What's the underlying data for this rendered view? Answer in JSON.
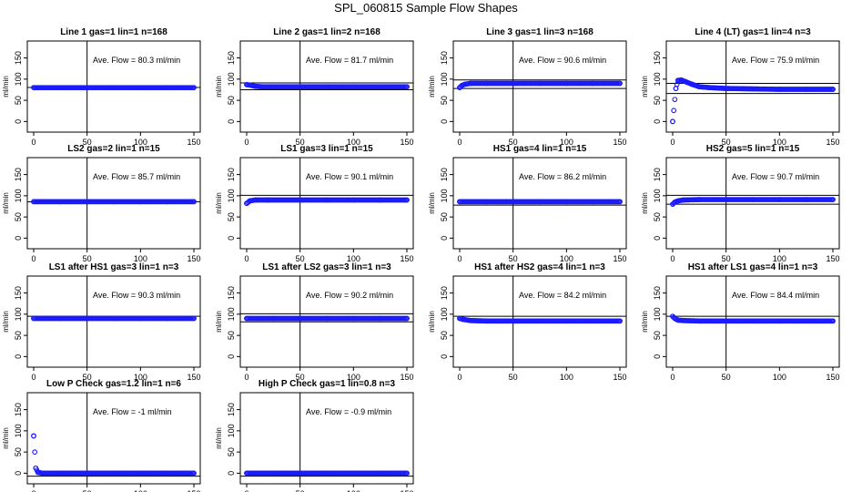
{
  "main_title": "SPL_060815  Sample Flow Shapes",
  "chart_data": [
    {
      "type": "scatter",
      "title": "Line 1 gas=1 lin=1 n=168",
      "ylabel": "ml/min",
      "xlim": [
        0,
        150
      ],
      "ylim": [
        -25,
        190
      ],
      "xticks": [
        0,
        50,
        100,
        150
      ],
      "yticks": [
        0,
        50,
        100,
        150
      ],
      "vline": 50,
      "hlines": [
        80.3
      ],
      "flow_label": "Ave. Flow =  80.3  ml/min",
      "series": [
        {
          "name": "",
          "x": [
            0,
            25,
            50,
            75,
            100,
            125,
            150
          ],
          "y": [
            80,
            80,
            80,
            80,
            80,
            80,
            80
          ]
        }
      ]
    },
    {
      "type": "scatter",
      "title": "Line 2 gas=1 lin=2 n=168",
      "ylabel": "ml/min",
      "xlim": [
        0,
        150
      ],
      "ylim": [
        -25,
        190
      ],
      "xticks": [
        0,
        50,
        100,
        150
      ],
      "yticks": [
        0,
        50,
        100,
        150
      ],
      "vline": 50,
      "hlines": [
        91,
        75
      ],
      "flow_label": "Ave. Flow =  81.7  ml/min",
      "series": [
        {
          "name": "",
          "x": [
            0,
            3,
            8,
            15,
            30,
            50,
            75,
            100,
            125,
            150
          ],
          "y": [
            87,
            86,
            83,
            82,
            82,
            82,
            82,
            82,
            82,
            82
          ]
        }
      ]
    },
    {
      "type": "scatter",
      "title": "Line 3 gas=1 lin=3 n=168",
      "ylabel": "ml/min",
      "xlim": [
        0,
        150
      ],
      "ylim": [
        -25,
        190
      ],
      "xticks": [
        0,
        50,
        100,
        150
      ],
      "yticks": [
        0,
        50,
        100,
        150
      ],
      "vline": 50,
      "hlines": [
        98,
        78
      ],
      "flow_label": "Ave. Flow =  90.6  ml/min",
      "series": [
        {
          "name": "",
          "x": [
            0,
            2,
            5,
            10,
            25,
            50,
            75,
            100,
            125,
            150
          ],
          "y": [
            80,
            85,
            88,
            90,
            90,
            90,
            90,
            90,
            90,
            90
          ]
        }
      ]
    },
    {
      "type": "scatter",
      "title": "Line 4 (LT) gas=1 lin=4 n=3",
      "ylabel": "ml/min",
      "xlim": [
        0,
        150
      ],
      "ylim": [
        -25,
        190
      ],
      "xticks": [
        0,
        50,
        100,
        150
      ],
      "yticks": [
        0,
        50,
        100,
        150
      ],
      "vline": 50,
      "hlines": [
        90,
        66
      ],
      "flow_label": "Ave. Flow =  75.9  ml/min",
      "series": [
        {
          "name": "",
          "x": [
            0,
            3,
            5,
            8,
            12,
            18,
            25,
            35,
            50,
            75,
            100,
            125,
            150
          ],
          "y": [
            0,
            78,
            97,
            98,
            94,
            88,
            82,
            80,
            78,
            77,
            76,
            76,
            76
          ]
        }
      ]
    },
    {
      "type": "scatter",
      "title": "LS2 gas=2 lin=1 n=15",
      "ylabel": "ml/min",
      "xlim": [
        0,
        150
      ],
      "ylim": [
        -25,
        190
      ],
      "xticks": [
        0,
        50,
        100,
        150
      ],
      "yticks": [
        0,
        50,
        100,
        150
      ],
      "vline": 50,
      "hlines": [
        85.7
      ],
      "flow_label": "Ave. Flow =  85.7  ml/min",
      "series": [
        {
          "name": "",
          "x": [
            0,
            25,
            50,
            75,
            100,
            125,
            150
          ],
          "y": [
            86,
            86,
            86,
            86,
            86,
            86,
            86
          ]
        }
      ]
    },
    {
      "type": "scatter",
      "title": "LS1 gas=3 lin=1 n=15",
      "ylabel": "ml/min",
      "xlim": [
        0,
        150
      ],
      "ylim": [
        -25,
        190
      ],
      "xticks": [
        0,
        50,
        100,
        150
      ],
      "yticks": [
        0,
        50,
        100,
        150
      ],
      "vline": 50,
      "hlines": [
        101
      ],
      "flow_label": "Ave. Flow =  90.1  ml/min",
      "series": [
        {
          "name": "",
          "x": [
            0,
            3,
            8,
            20,
            50,
            75,
            100,
            125,
            150
          ],
          "y": [
            82,
            88,
            90,
            90,
            90,
            90,
            90,
            90,
            90
          ]
        }
      ]
    },
    {
      "type": "scatter",
      "title": "HS1 gas=4 lin=1 n=15",
      "ylabel": "ml/min",
      "xlim": [
        0,
        150
      ],
      "ylim": [
        -25,
        190
      ],
      "xticks": [
        0,
        50,
        100,
        150
      ],
      "yticks": [
        0,
        50,
        100,
        150
      ],
      "vline": 50,
      "hlines": [
        78
      ],
      "flow_label": "Ave. Flow =  86.2  ml/min",
      "series": [
        {
          "name": "",
          "x": [
            0,
            25,
            50,
            75,
            100,
            125,
            150
          ],
          "y": [
            86,
            86,
            86,
            86,
            86,
            86,
            86
          ]
        }
      ]
    },
    {
      "type": "scatter",
      "title": "HS2 gas=5 lin=1 n=15",
      "ylabel": "ml/min",
      "xlim": [
        0,
        150
      ],
      "ylim": [
        -25,
        190
      ],
      "xticks": [
        0,
        50,
        100,
        150
      ],
      "yticks": [
        0,
        50,
        100,
        150
      ],
      "vline": 50,
      "hlines": [
        101,
        80
      ],
      "flow_label": "Ave. Flow =  90.7  ml/min",
      "series": [
        {
          "name": "",
          "x": [
            0,
            2,
            5,
            10,
            25,
            50,
            75,
            100,
            125,
            150
          ],
          "y": [
            80,
            85,
            88,
            90,
            91,
            91,
            91,
            91,
            91,
            91
          ]
        }
      ]
    },
    {
      "type": "scatter",
      "title": "LS1 after HS1 gas=3 lin=1 n=3",
      "ylabel": "ml/min",
      "xlim": [
        0,
        150
      ],
      "ylim": [
        -25,
        190
      ],
      "xticks": [
        0,
        50,
        100,
        150
      ],
      "yticks": [
        0,
        50,
        100,
        150
      ],
      "vline": 50,
      "hlines": [
        95
      ],
      "flow_label": "Ave. Flow =  90.3  ml/min",
      "series": [
        {
          "name": "",
          "x": [
            0,
            25,
            50,
            75,
            100,
            125,
            150
          ],
          "y": [
            90,
            90,
            90,
            90,
            90,
            90,
            90
          ]
        }
      ]
    },
    {
      "type": "scatter",
      "title": "LS1 after LS2 gas=3 lin=1 n=3",
      "ylabel": "ml/min",
      "xlim": [
        0,
        150
      ],
      "ylim": [
        -25,
        190
      ],
      "xticks": [
        0,
        50,
        100,
        150
      ],
      "yticks": [
        0,
        50,
        100,
        150
      ],
      "vline": 50,
      "hlines": [
        101,
        82
      ],
      "flow_label": "Ave. Flow =  90.2  ml/min",
      "series": [
        {
          "name": "",
          "x": [
            0,
            25,
            50,
            75,
            100,
            125,
            150
          ],
          "y": [
            90,
            90,
            90,
            90,
            90,
            90,
            90
          ]
        }
      ]
    },
    {
      "type": "scatter",
      "title": "HS1 after HS2 gas=4 lin=1 n=3",
      "ylabel": "ml/min",
      "xlim": [
        0,
        150
      ],
      "ylim": [
        -25,
        190
      ],
      "xticks": [
        0,
        50,
        100,
        150
      ],
      "yticks": [
        0,
        50,
        100,
        150
      ],
      "vline": 50,
      "hlines": [
        95
      ],
      "flow_label": "Ave. Flow =  84.2  ml/min",
      "series": [
        {
          "name": "",
          "x": [
            0,
            3,
            10,
            25,
            50,
            75,
            100,
            125,
            150
          ],
          "y": [
            90,
            88,
            85,
            84,
            84,
            84,
            84,
            84,
            84
          ]
        }
      ]
    },
    {
      "type": "scatter",
      "title": "HS1 after LS1 gas=4 lin=1 n=3",
      "ylabel": "ml/min",
      "xlim": [
        0,
        150
      ],
      "ylim": [
        -25,
        190
      ],
      "xticks": [
        0,
        50,
        100,
        150
      ],
      "yticks": [
        0,
        50,
        100,
        150
      ],
      "vline": 50,
      "hlines": [
        95
      ],
      "flow_label": "Ave. Flow =  84.4  ml/min",
      "series": [
        {
          "name": "",
          "x": [
            0,
            2,
            5,
            10,
            25,
            50,
            75,
            100,
            125,
            150
          ],
          "y": [
            95,
            90,
            86,
            85,
            84,
            84,
            84,
            84,
            84,
            84
          ]
        }
      ]
    },
    {
      "type": "scatter",
      "title": "Low P Check gas=1.2 lin=1 n=6",
      "ylabel": "ml/min",
      "xlim": [
        0,
        150
      ],
      "ylim": [
        -25,
        190
      ],
      "xticks": [
        0,
        50,
        100,
        150
      ],
      "yticks": [
        0,
        50,
        100,
        150
      ],
      "vline": 50,
      "hlines": [
        -7
      ],
      "flow_label": "Ave. Flow =  -1  ml/min",
      "series": [
        {
          "name": "",
          "x": [
            0,
            2,
            4,
            8,
            25,
            50,
            75,
            100,
            125,
            150
          ],
          "y": [
            88,
            12,
            2,
            0,
            0,
            0,
            0,
            0,
            0,
            0
          ]
        }
      ]
    },
    {
      "type": "scatter",
      "title": "High P Check gas=1 lin=0.8 n=3",
      "ylabel": "ml/min",
      "xlim": [
        0,
        150
      ],
      "ylim": [
        -25,
        190
      ],
      "xticks": [
        0,
        50,
        100,
        150
      ],
      "yticks": [
        0,
        50,
        100,
        150
      ],
      "vline": 50,
      "hlines": [
        -7
      ],
      "flow_label": "Ave. Flow =  -0.9  ml/min",
      "series": [
        {
          "name": "",
          "x": [
            0,
            25,
            50,
            75,
            100,
            125,
            150
          ],
          "y": [
            0,
            0,
            0,
            0,
            0,
            0,
            0
          ]
        }
      ]
    }
  ]
}
